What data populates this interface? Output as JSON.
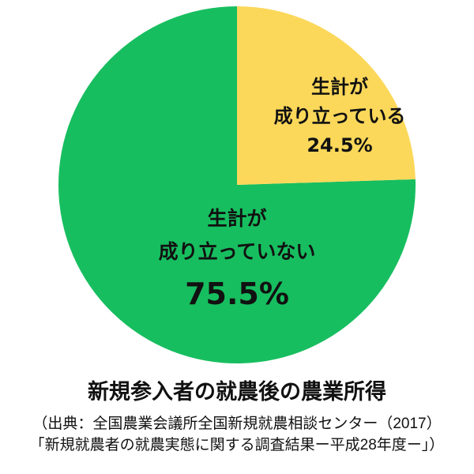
{
  "chart_data": {
    "type": "pie",
    "title": "新規参入者の就農後の農業所得",
    "categories": [
      "生計が成り立っている",
      "生計が成り立っていない"
    ],
    "values": [
      24.5,
      75.5
    ],
    "unit": "%",
    "colors": [
      "#FBD85A",
      "#17BE5F"
    ],
    "start_angle": "12 o'clock, clockwise",
    "legend": "none (labels inside slices)",
    "source": "（出典：全国農業会議所全国新規就農相談センター（2017）「新規就農者の就農実態に関する調査結果ー平成28年度ー」）"
  },
  "slices": {
    "yes": {
      "line1": "生計が",
      "line2": "成り立っている",
      "pct": "24.5%",
      "color": "#FBD85A"
    },
    "no": {
      "line1": "生計が",
      "line2": "成り立っていない",
      "pct": "75.5%",
      "color": "#17BE5F"
    }
  },
  "title": "新規参入者の就農後の農業所得",
  "source": {
    "line1": "（出典：全国農業会議所全国新規就農相談センター（2017）",
    "line2": "「新規就農者の就農実態に関する調査結果ー平成28年度ー」）"
  }
}
